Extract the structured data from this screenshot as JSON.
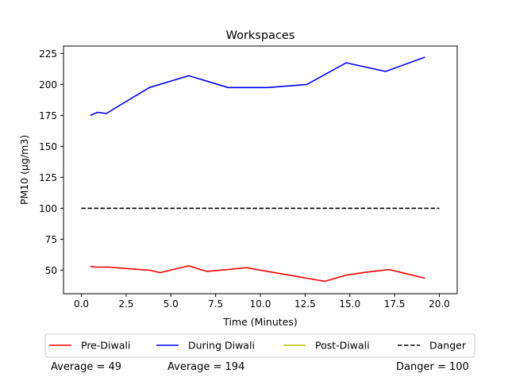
{
  "chart_data": {
    "type": "line",
    "title": "Workspaces",
    "xlabel": "Time (Minutes)",
    "ylabel": "PM10 (µg/m3)",
    "xlim": [
      -1,
      21
    ],
    "ylim": [
      31,
      231
    ],
    "xticks": [
      0.0,
      2.5,
      5.0,
      7.5,
      10.0,
      12.5,
      15.0,
      17.5,
      20.0
    ],
    "xtick_labels": [
      "0.0",
      "2.5",
      "5.0",
      "7.5",
      "10.0",
      "12.5",
      "15.0",
      "17.5",
      "20.0"
    ],
    "yticks": [
      50,
      75,
      100,
      125,
      150,
      175,
      200,
      225
    ],
    "ytick_labels": [
      "50",
      "75",
      "100",
      "125",
      "150",
      "175",
      "200",
      "225"
    ],
    "grid": false,
    "legend_position": "bottom",
    "series": [
      {
        "name": "Pre-Diwali",
        "color": "#ff0000",
        "style": "solid",
        "x": [
          0.5,
          0.8,
          1.5,
          2.8,
          3.8,
          4.4,
          6.0,
          7.0,
          8.2,
          9.2,
          10.4,
          11.6,
          12.6,
          13.6,
          14.8,
          16.0,
          17.2,
          19.2
        ],
        "y": [
          53,
          52.5,
          52.5,
          51,
          50,
          48,
          53.5,
          49,
          50.5,
          52,
          49,
          46,
          43.5,
          41,
          46,
          48.5,
          50.5,
          43.5
        ]
      },
      {
        "name": "During Diwali",
        "color": "#0000ff",
        "style": "solid",
        "x": [
          0.5,
          0.9,
          1.4,
          1.9,
          3.8,
          6.0,
          8.2,
          10.4,
          12.6,
          14.8,
          17.0,
          19.2
        ],
        "y": [
          175,
          177.5,
          176.5,
          181,
          197.5,
          207,
          197.5,
          197.5,
          200,
          217.5,
          210.5,
          222
        ]
      },
      {
        "name": "Post-Diwali",
        "color": "#bfbf00",
        "style": "solid",
        "x": [],
        "y": []
      },
      {
        "name": "Danger",
        "color": "#000000",
        "style": "dashed",
        "x": [
          0,
          20
        ],
        "y": [
          100,
          100
        ]
      }
    ],
    "annotations": [
      "Average = 49",
      "Average = 194",
      "Danger = 100"
    ]
  }
}
